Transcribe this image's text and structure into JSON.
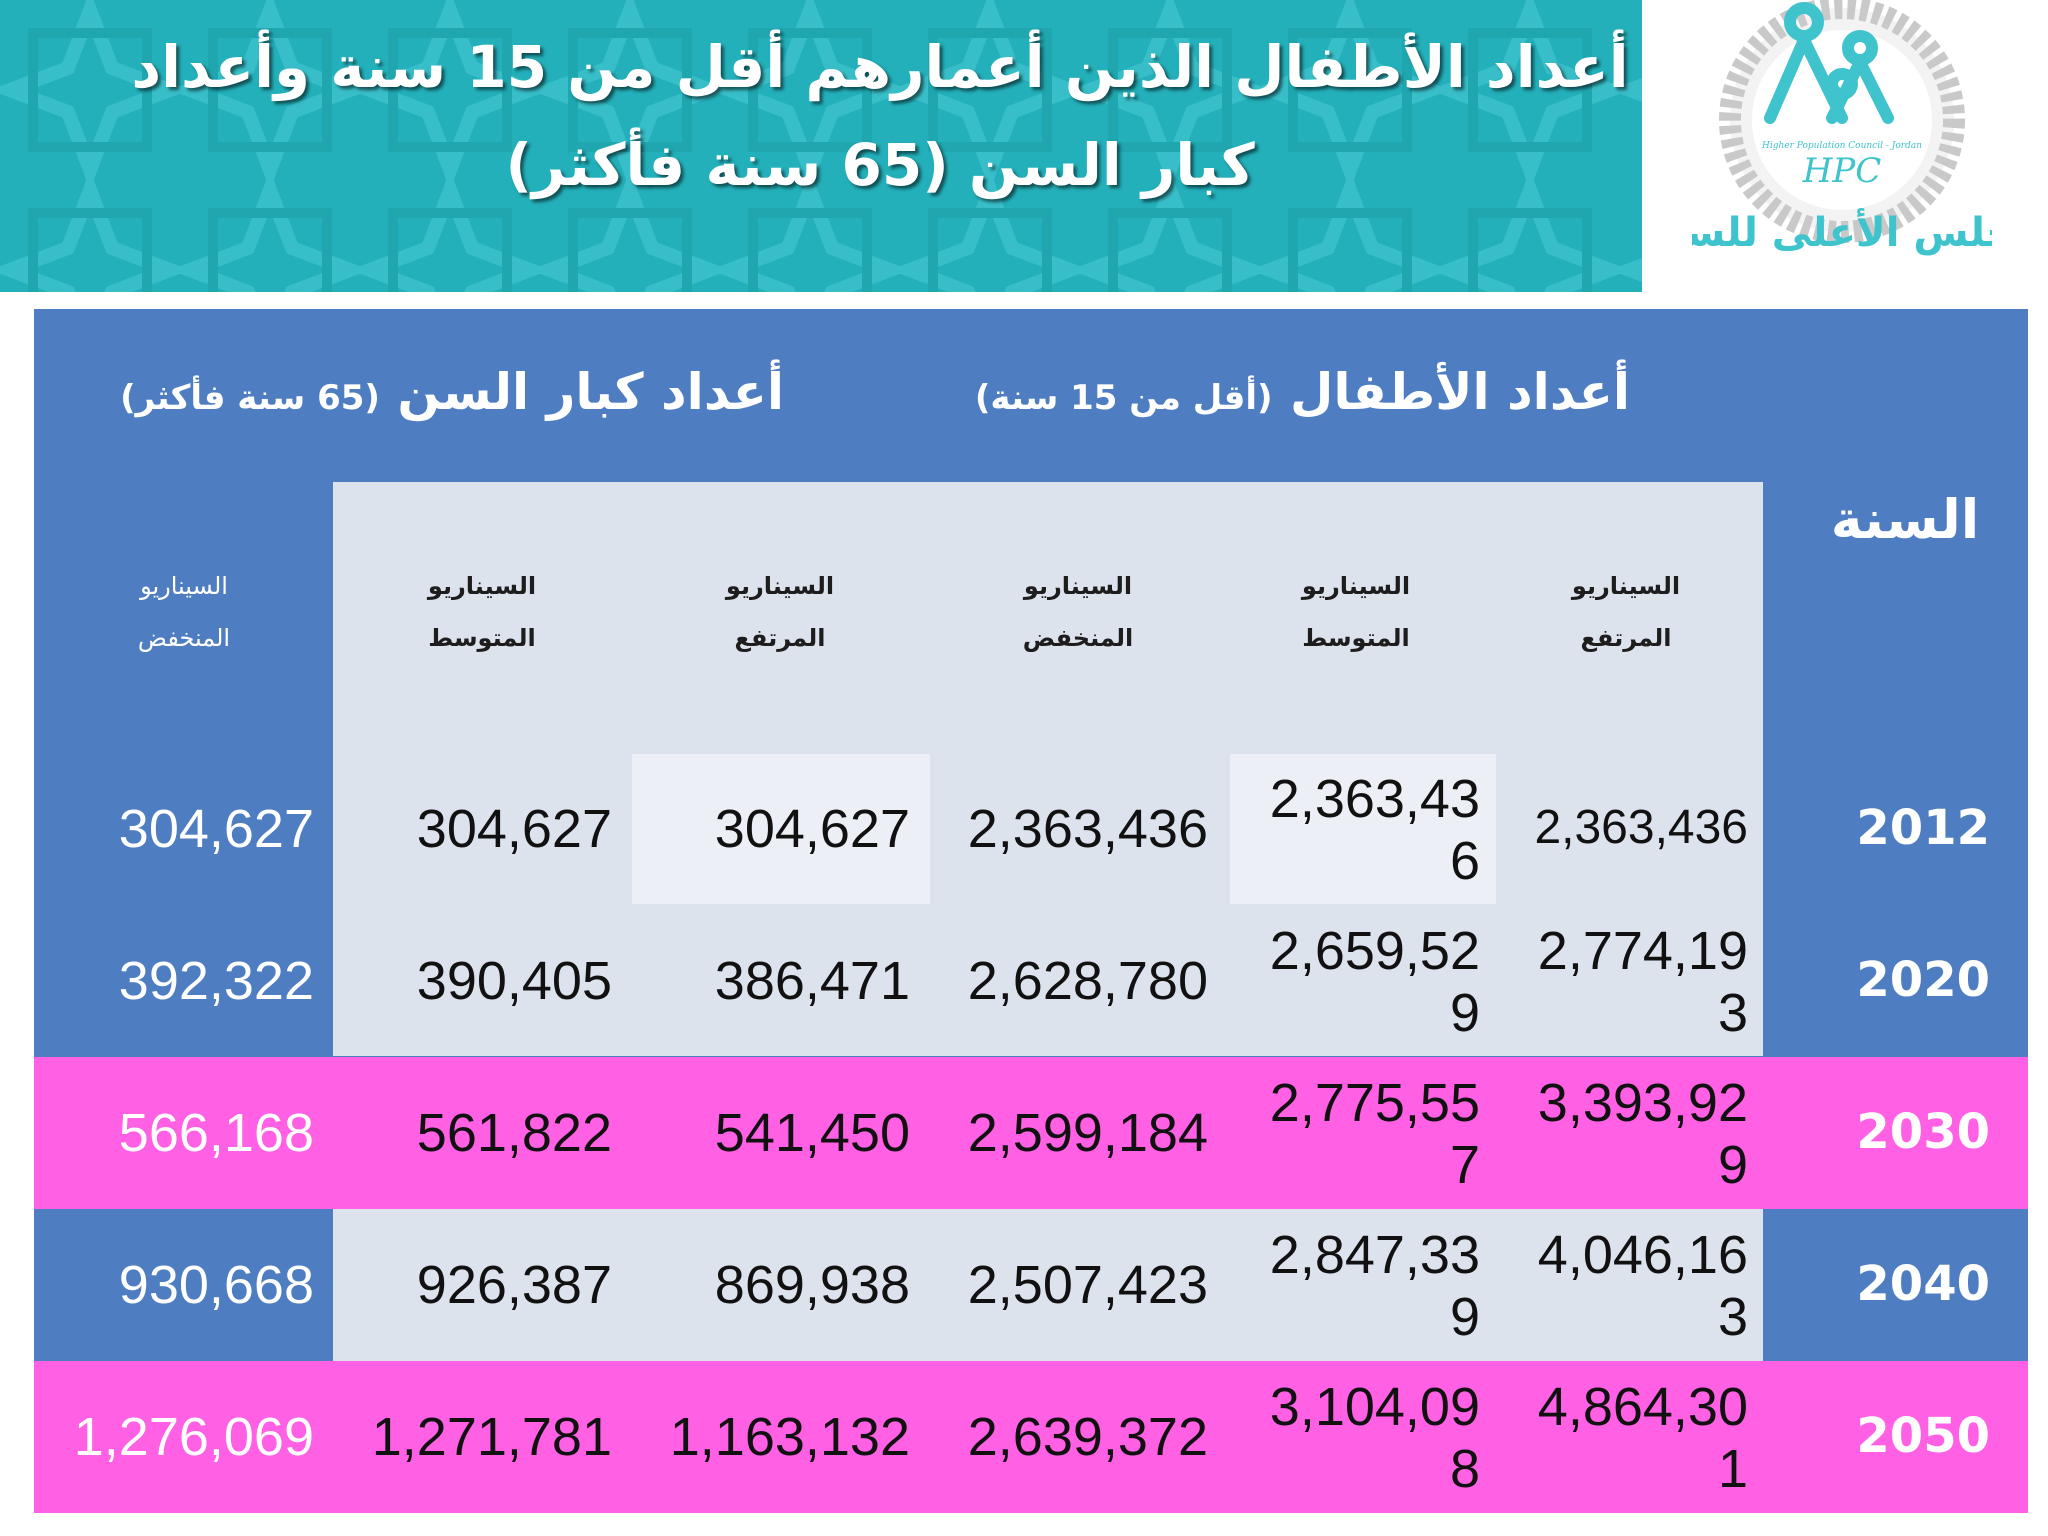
{
  "header": {
    "title_line1": "أعداد الأطفال الذين أعمارهم أقل من 15 سنة وأعداد",
    "title_line2": "كبار السن (65 سنة فأكثر)",
    "bg_color": "#23b0ba"
  },
  "logo": {
    "caption_latin": "Higher Population Council - Jordan",
    "initials": "HPC",
    "arabic_name": "المجلس الأعلى للسكان"
  },
  "table": {
    "group_children": {
      "title": "أعداد الأطفال",
      "subtitle": "(أقل من 15 سنة)"
    },
    "group_elderly": {
      "title": "أعداد كبار السن",
      "subtitle": "(65 سنة فأكثر)"
    },
    "year_header": "السنة",
    "scenario_word": "السيناريو",
    "scenarios": {
      "high": "المرتفع",
      "medium": "المتوسط",
      "low": "المنخفض"
    },
    "rows": [
      {
        "year": "2012",
        "children": {
          "high": "2,363,436",
          "medium": "2,363,436",
          "low": "2,363,436"
        },
        "elderly": {
          "high": "304,627",
          "medium": "304,627",
          "low": "304,627"
        }
      },
      {
        "year": "2020",
        "children": {
          "high": "2,774,193",
          "medium": "2,659,529",
          "low": "2,628,780"
        },
        "elderly": {
          "high": "386,471",
          "medium": "390,405",
          "low": "392,322"
        }
      },
      {
        "year": "2030",
        "children": {
          "high": "3,393,929",
          "medium": "2,775,557",
          "low": "2,599,184"
        },
        "elderly": {
          "high": "541,450",
          "medium": "561,822",
          "low": "566,168"
        }
      },
      {
        "year": "2040",
        "children": {
          "high": "4,046,163",
          "medium": "2,847,339",
          "low": "2,507,423"
        },
        "elderly": {
          "high": "869,938",
          "medium": "926,387",
          "low": "930,668"
        }
      },
      {
        "year": "2050",
        "children": {
          "high": "4,864,301",
          "medium": "3,104,098",
          "low": "2,639,372"
        },
        "elderly": {
          "high": "1,163,132",
          "medium": "1,271,781",
          "low": "1,276,069"
        }
      }
    ],
    "colors": {
      "panel_blue": "#4e7ec1",
      "pink_row": "#ff60e4",
      "grey_block": "#dde3ec"
    }
  }
}
